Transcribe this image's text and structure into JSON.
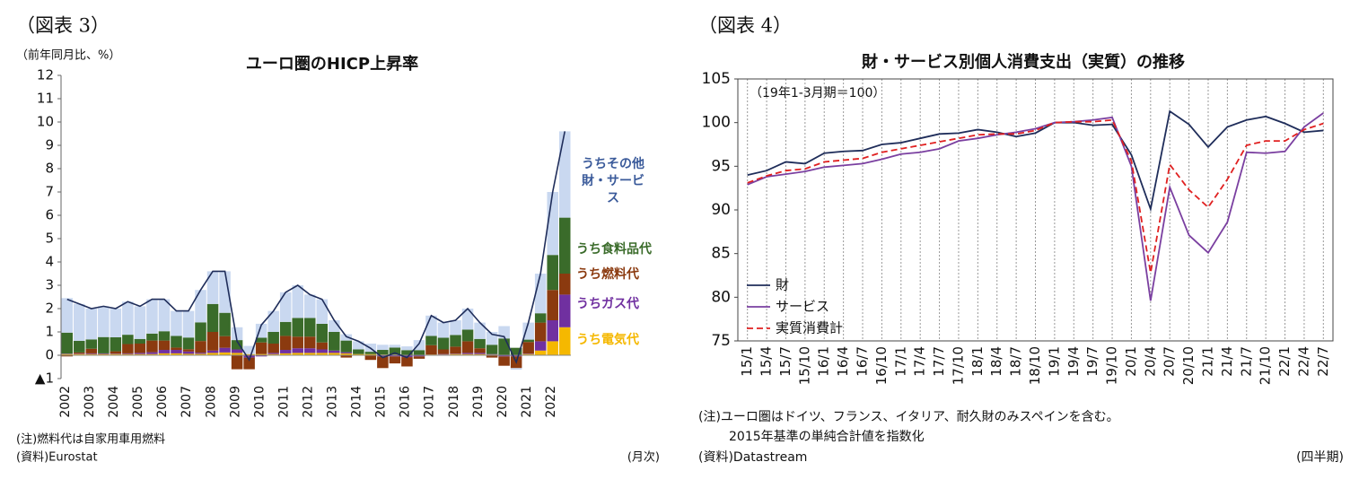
{
  "chart_data": [
    {
      "type": "bar",
      "figure": "（図表 3）",
      "y_label": "（前年同月比、%）",
      "title": "ユーロ圏のHICP上昇率",
      "categories": [
        "2002",
        null,
        "2003",
        null,
        "2004",
        null,
        "2005",
        null,
        "2006",
        null,
        "2007",
        null,
        "2008",
        null,
        "2009",
        null,
        "2010",
        null,
        "2011",
        null,
        "2012",
        null,
        "2013",
        null,
        "2014",
        null,
        "2015",
        null,
        "2016",
        null,
        "2017",
        null,
        "2018",
        null,
        "2019",
        null,
        "2020",
        null,
        "2021",
        null,
        "2022",
        null
      ],
      "series": [
        {
          "name": "うち電気代",
          "color": "#f5b800",
          "values": [
            0.05,
            0.05,
            0.05,
            0.05,
            0.05,
            0.05,
            0.05,
            0.05,
            0.08,
            0.08,
            0.06,
            0.06,
            0.1,
            0.12,
            0.1,
            0.05,
            0.05,
            0.05,
            0.08,
            0.1,
            0.1,
            0.1,
            0.1,
            0.08,
            0.05,
            0.05,
            0.03,
            0.03,
            0.02,
            0.02,
            0.03,
            0.03,
            0.05,
            0.05,
            0.05,
            0.03,
            0.02,
            0.02,
            0.05,
            0.2,
            0.6,
            1.2
          ]
        },
        {
          "name": "うちガス代",
          "color": "#7030a0",
          "values": [
            0.02,
            0.02,
            0.03,
            0.03,
            0.02,
            0.03,
            0.05,
            0.08,
            0.15,
            0.15,
            0.1,
            0.05,
            0.1,
            0.2,
            0.15,
            -0.1,
            -0.05,
            0.05,
            0.15,
            0.2,
            0.2,
            0.15,
            0.1,
            0.05,
            0,
            0,
            -0.05,
            -0.05,
            -0.08,
            -0.05,
            0,
            0.02,
            0.02,
            0.05,
            0.05,
            0.02,
            -0.05,
            -0.05,
            0.02,
            0.4,
            0.9,
            1.4
          ]
        },
        {
          "name": "うち燃料代",
          "color": "#8b3a0f",
          "values": [
            -0.05,
            0.05,
            0.2,
            0,
            0.1,
            0.4,
            0.4,
            0.5,
            0.4,
            0.1,
            0.1,
            0.5,
            0.8,
            0.5,
            -0.6,
            -0.5,
            0.5,
            0.4,
            0.6,
            0.5,
            0.5,
            0.3,
            0,
            -0.1,
            0,
            -0.2,
            -0.5,
            -0.3,
            -0.4,
            -0.1,
            0.4,
            0.2,
            0.3,
            0.5,
            0.2,
            -0.1,
            -0.4,
            -0.5,
            0.5,
            0.8,
            1.3,
            0.9
          ]
        },
        {
          "name": "うち食料品代",
          "color": "#3a6b2a",
          "values": [
            0.9,
            0.5,
            0.4,
            0.7,
            0.6,
            0.4,
            0.2,
            0.3,
            0.4,
            0.5,
            0.5,
            0.8,
            1.2,
            1.0,
            0.4,
            0,
            0.2,
            0.5,
            0.6,
            0.8,
            0.8,
            0.8,
            0.8,
            0.5,
            0.2,
            0.1,
            0.2,
            0.3,
            0.2,
            0.2,
            0.4,
            0.5,
            0.5,
            0.5,
            0.4,
            0.4,
            0.7,
            0.3,
            0.1,
            0.4,
            1.5,
            2.4
          ]
        },
        {
          "name": "うちその他財・サービス",
          "color": "#c9d8f0",
          "values": [
            1.48,
            1.58,
            1.32,
            1.32,
            1.23,
            1.42,
            1.4,
            1.47,
            1.37,
            1.07,
            1.14,
            1.39,
            1.4,
            1.78,
            0.55,
            0.35,
            0.6,
            0.9,
            1.27,
            1.4,
            1.0,
            1.05,
            0.5,
            0.27,
            0.35,
            0.35,
            0.22,
            0.12,
            0.16,
            0.43,
            0.87,
            0.65,
            0.63,
            0.9,
            0.7,
            0.55,
            0.53,
            -0.07,
            0.73,
            1.7,
            2.7,
            3.7
          ]
        }
      ],
      "line": {
        "color": "#1f2d5a",
        "values": [
          2.4,
          2.2,
          2.0,
          2.1,
          2.0,
          2.3,
          2.1,
          2.4,
          2.4,
          1.9,
          1.9,
          2.8,
          3.6,
          3.6,
          0.6,
          -0.2,
          1.3,
          1.9,
          2.7,
          3.0,
          2.6,
          2.4,
          1.5,
          0.8,
          0.6,
          0.3,
          -0.1,
          0.1,
          -0.1,
          0.5,
          1.7,
          1.4,
          1.5,
          2.0,
          1.4,
          0.9,
          0.8,
          -0.3,
          1.4,
          3.5,
          7.0,
          9.6
        ]
      },
      "stacked": true,
      "ylim": [
        -1,
        12
      ],
      "yticks": [
        {
          "value": -1,
          "label": "▲1"
        },
        0,
        1,
        2,
        3,
        4,
        5,
        6,
        7,
        8,
        9,
        10,
        11,
        12
      ],
      "notes": [
        "(注)燃料代は自家用車用燃料"
      ],
      "source": "(資料)Eurostat",
      "frequency": "(月次)"
    },
    {
      "type": "line",
      "figure": "（図表 4）",
      "title": "財・サービス別個人消費支出（実質）の推移",
      "annotation": "（19年1-3月期＝100）",
      "categories": [
        "15/1",
        "15/4",
        "15/7",
        "15/10",
        "16/1",
        "16/4",
        "16/7",
        "16/10",
        "17/1",
        "17/4",
        "17/7",
        "17/10",
        "18/1",
        "18/4",
        "18/7",
        "18/10",
        "19/1",
        "19/4",
        "19/7",
        "19/10",
        "20/1",
        "20/4",
        "20/7",
        "20/10",
        "21/1",
        "21/4",
        "21/7",
        "21/10",
        "22/1",
        "22/4",
        "22/7"
      ],
      "series": [
        {
          "name": "財",
          "color": "#1f2d5a",
          "dashed": false,
          "values": [
            94.0,
            94.5,
            95.5,
            95.3,
            96.5,
            96.7,
            96.8,
            97.5,
            97.7,
            98.2,
            98.7,
            98.8,
            99.2,
            98.9,
            98.4,
            98.8,
            100.0,
            100.0,
            99.7,
            99.8,
            96.3,
            90.1,
            101.3,
            99.8,
            97.2,
            99.5,
            100.3,
            100.7,
            99.9,
            98.9,
            99.1
          ]
        },
        {
          "name": "サービス",
          "color": "#7a3fa0",
          "dashed": false,
          "values": [
            92.9,
            93.8,
            94.1,
            94.4,
            94.9,
            95.1,
            95.3,
            95.8,
            96.4,
            96.6,
            97.0,
            97.9,
            98.2,
            98.6,
            98.9,
            99.3,
            100.0,
            100.1,
            100.3,
            100.6,
            95.0,
            79.6,
            92.6,
            87.1,
            85.1,
            88.6,
            96.6,
            96.5,
            96.7,
            99.5,
            101.1
          ]
        },
        {
          "name": "実質消費計",
          "color": "#e02020",
          "dashed": true,
          "values": [
            93.1,
            93.9,
            94.5,
            94.7,
            95.5,
            95.7,
            95.9,
            96.6,
            97.0,
            97.4,
            97.8,
            98.2,
            98.6,
            98.7,
            98.7,
            99.1,
            100.0,
            100.1,
            100.1,
            100.3,
            95.6,
            82.8,
            95.2,
            92.3,
            90.3,
            93.5,
            97.4,
            97.9,
            97.9,
            99.2,
            99.9
          ]
        }
      ],
      "ylim": [
        75,
        105
      ],
      "yticks": [
        75,
        80,
        85,
        90,
        95,
        100,
        105
      ],
      "grid": "x",
      "legend": "lower left",
      "notes": [
        "(注)ユーロ圏はドイツ、フランス、イタリア、耐久財のみスペインを含む。",
        "2015年基準の単純合計値を指数化"
      ],
      "source": "(資料)Datastream",
      "frequency": "(四半期)"
    }
  ]
}
